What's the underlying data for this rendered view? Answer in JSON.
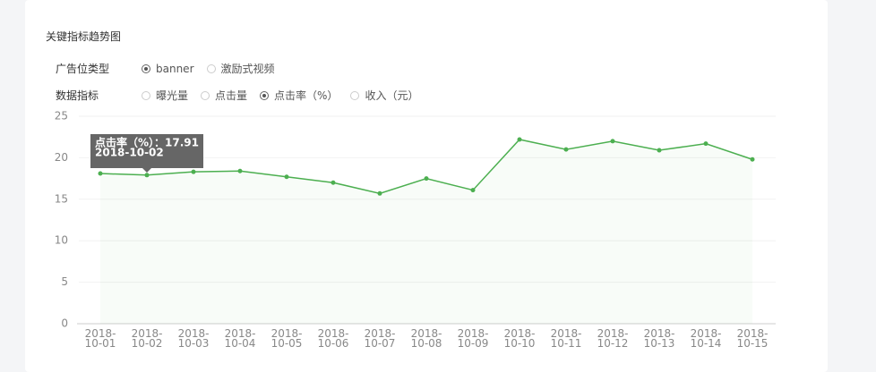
{
  "title": "关键指标趋势图",
  "filters": [
    {
      "label": "广告位类型",
      "options": [
        {
          "label": "banner",
          "checked": true
        },
        {
          "label": "激励式视频",
          "checked": false
        }
      ]
    },
    {
      "label": "数据指标",
      "options": [
        {
          "label": "曝光量",
          "checked": false
        },
        {
          "label": "点击量",
          "checked": false
        },
        {
          "label": "点击率（%）",
          "checked": true
        },
        {
          "label": "收入（元）",
          "checked": false
        }
      ]
    }
  ],
  "tooltip": {
    "text": "点击率（%）：17.91",
    "index": 1
  },
  "chart_data": {
    "type": "line",
    "categories": [
      "2018-10-01",
      "2018-10-02",
      "2018-10-03",
      "2018-10-04",
      "2018-10-05",
      "2018-10-06",
      "2018-10-07",
      "2018-10-08",
      "2018-10-09",
      "2018-10-10",
      "2018-10-11",
      "2018-10-12",
      "2018-10-13",
      "2018-10-14",
      "2018-10-15"
    ],
    "series": [
      {
        "name": "点击率（%）",
        "color": "#4caf50",
        "values": [
          18.1,
          17.91,
          18.3,
          18.4,
          17.7,
          17.0,
          15.7,
          17.5,
          16.1,
          22.2,
          21.0,
          22.0,
          20.9,
          21.7,
          19.8
        ]
      }
    ],
    "ylim": [
      0,
      25
    ],
    "yticks": [
      0,
      5,
      10,
      15,
      20,
      25
    ],
    "grid": true
  }
}
